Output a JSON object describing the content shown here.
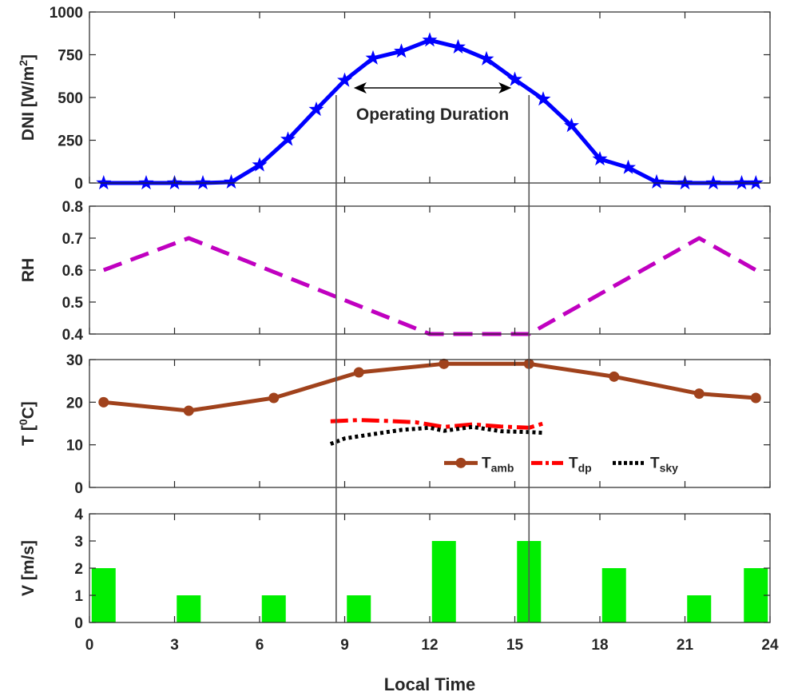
{
  "chart_data": [
    {
      "id": "dni",
      "type": "line",
      "ylabel": "DNI [W/m",
      "ylabel_sup": "2",
      "ylabel_tail": "]",
      "ylim": [
        0,
        1000
      ],
      "yticks": [
        "0",
        "250",
        "500",
        "750",
        "1000"
      ],
      "annotation": "Operating Duration",
      "operating_range": [
        8.7,
        15.5
      ],
      "series": [
        {
          "color": "#0000ff",
          "marker": "star",
          "x": [
            0.5,
            2,
            3,
            4,
            5,
            6,
            7,
            8,
            9,
            10,
            11,
            12,
            13,
            14,
            15,
            16,
            17,
            18,
            19,
            20,
            21,
            22,
            23,
            23.5
          ],
          "y": [
            0,
            0,
            0,
            0,
            5,
            105,
            255,
            430,
            600,
            730,
            770,
            835,
            795,
            725,
            605,
            490,
            335,
            140,
            90,
            5,
            0,
            0,
            0,
            0
          ]
        }
      ]
    },
    {
      "id": "rh",
      "type": "line",
      "ylabel": "RH",
      "ylim": [
        0.4,
        0.8
      ],
      "yticks": [
        "0.4",
        "0.5",
        "0.6",
        "0.7",
        "0.8"
      ],
      "series": [
        {
          "color": "#c000c0",
          "style": "dashed",
          "x": [
            0.5,
            3.5,
            12,
            15.5,
            21.5,
            23.5
          ],
          "y": [
            0.6,
            0.7,
            0.4,
            0.4,
            0.7,
            0.6
          ]
        }
      ]
    },
    {
      "id": "temp",
      "type": "line",
      "ylabel": "T [",
      "ylabel_sup": "0",
      "ylabel_tail": "C]",
      "ylim": [
        0,
        30
      ],
      "yticks": [
        "0",
        "10",
        "20",
        "30"
      ],
      "legend_position": "bottom-right",
      "series": [
        {
          "name": "T",
          "sub": "amb",
          "color": "#a0421c",
          "marker": "circle",
          "x": [
            0.5,
            3.5,
            6.5,
            9.5,
            12.5,
            15.5,
            18.5,
            21.5,
            23.5
          ],
          "y": [
            20,
            18,
            21,
            27,
            29,
            29,
            26,
            22,
            21
          ]
        },
        {
          "name": "T",
          "sub": "dp",
          "color": "#ff0000",
          "style": "dashdot",
          "x": [
            8.5,
            9.5,
            10.5,
            11.5,
            12.5,
            13.5,
            14.5,
            15.5,
            16
          ],
          "y": [
            15.5,
            15.8,
            15.6,
            15.3,
            14.2,
            14.8,
            14.3,
            14.0,
            15.0
          ]
        },
        {
          "name": "T",
          "sub": "sky",
          "color": "#000000",
          "style": "dotted",
          "x": [
            8.5,
            9,
            10,
            11,
            12,
            12.5,
            13.5,
            14.5,
            15.5,
            16
          ],
          "y": [
            10.2,
            11.5,
            12.5,
            13.5,
            14,
            13.3,
            14.2,
            13.2,
            13.0,
            12.8
          ]
        }
      ]
    },
    {
      "id": "wind",
      "type": "bar",
      "ylabel": "V [m/s]",
      "ylim": [
        0,
        4
      ],
      "yticks": [
        "0",
        "1",
        "2",
        "3",
        "4"
      ],
      "xlim": [
        0,
        24
      ],
      "xticks": [
        "0",
        "3",
        "6",
        "9",
        "12",
        "15",
        "18",
        "21",
        "24"
      ],
      "xlabel": "Local Time",
      "series": [
        {
          "color": "#00ee00",
          "x": [
            0.5,
            3.5,
            6.5,
            9.5,
            12.5,
            15.5,
            18.5,
            21.5,
            23.5
          ],
          "y": [
            2,
            1,
            1,
            1,
            3,
            3,
            2,
            1,
            2
          ]
        }
      ]
    }
  ]
}
